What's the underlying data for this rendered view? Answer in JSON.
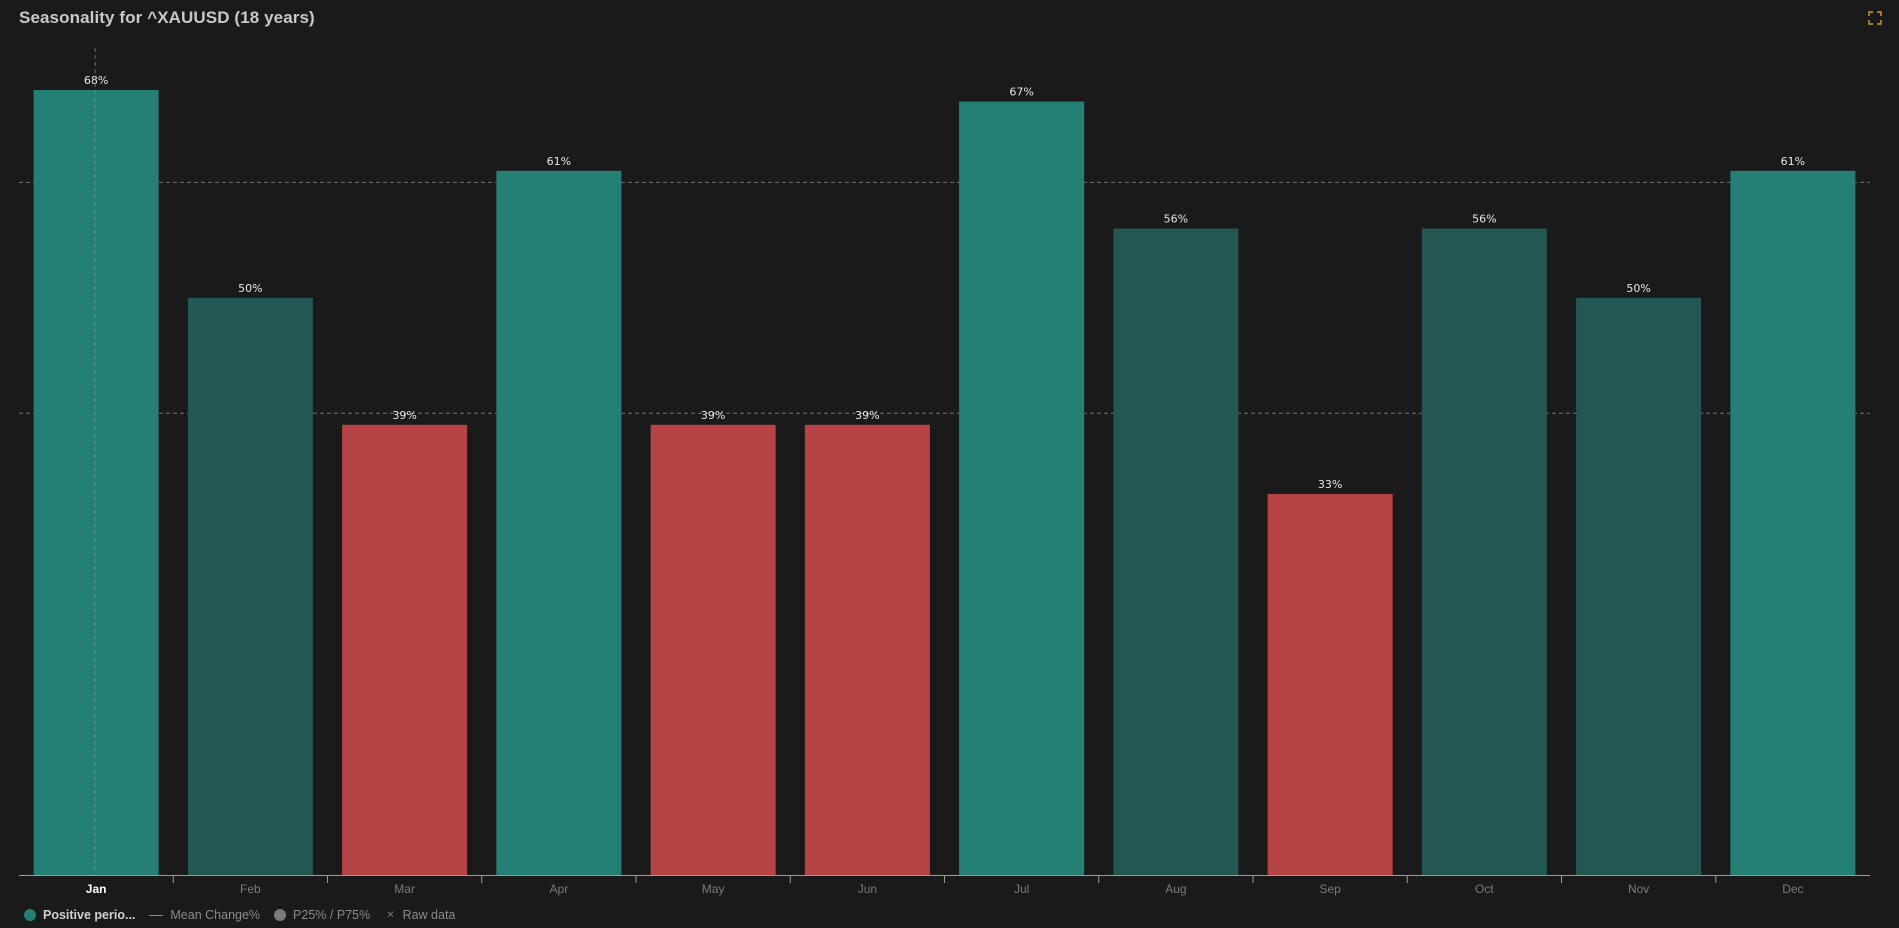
{
  "title": "Seasonality for ^XAUUSD (18 years)",
  "colors": {
    "background": "#1a1a1a",
    "strong_positive": "#247f74",
    "weak_positive": "#225851",
    "negative": "#b64444",
    "axis": "#9a9a9a",
    "label": "#e6e6e6",
    "tick": "#7a7a7a",
    "tick_active": "#ffffff",
    "gridline": "#8a8a8a",
    "expand_icon": "#d4a017"
  },
  "chart_data": {
    "type": "bar",
    "categories": [
      "Jan",
      "Feb",
      "Mar",
      "Apr",
      "May",
      "Jun",
      "Jul",
      "Aug",
      "Sep",
      "Oct",
      "Nov",
      "Dec"
    ],
    "series": [
      {
        "name": "Positive perio...",
        "values": [
          68,
          50,
          39,
          61,
          39,
          39,
          67,
          56,
          33,
          56,
          50,
          61
        ],
        "labels": [
          "68%",
          "50%",
          "39%",
          "61%",
          "39%",
          "39%",
          "67%",
          "56%",
          "33%",
          "56%",
          "50%",
          "61%"
        ],
        "tier": [
          "strong",
          "weak",
          "negative",
          "strong",
          "negative",
          "negative",
          "strong",
          "weak",
          "negative",
          "weak",
          "weak",
          "strong"
        ]
      }
    ],
    "ylim": [
      0,
      72
    ],
    "reference_lines": [
      60,
      40
    ],
    "highlighted_category": "Jan",
    "xlabel": "",
    "ylabel": "",
    "grid": false,
    "legend_position": "bottom-left"
  },
  "legend": [
    {
      "label": "Positive perio...",
      "kind": "dot",
      "color": "#247f74",
      "active": true
    },
    {
      "label": "Mean Change%",
      "kind": "line",
      "color": "#8a8a8a",
      "active": false
    },
    {
      "label": "P25% / P75%",
      "kind": "dot",
      "color": "#7a7a7a",
      "active": false
    },
    {
      "label": "Raw data",
      "kind": "x",
      "color": "#777777",
      "active": false
    }
  ],
  "icons": {
    "expand": "expand-icon"
  }
}
